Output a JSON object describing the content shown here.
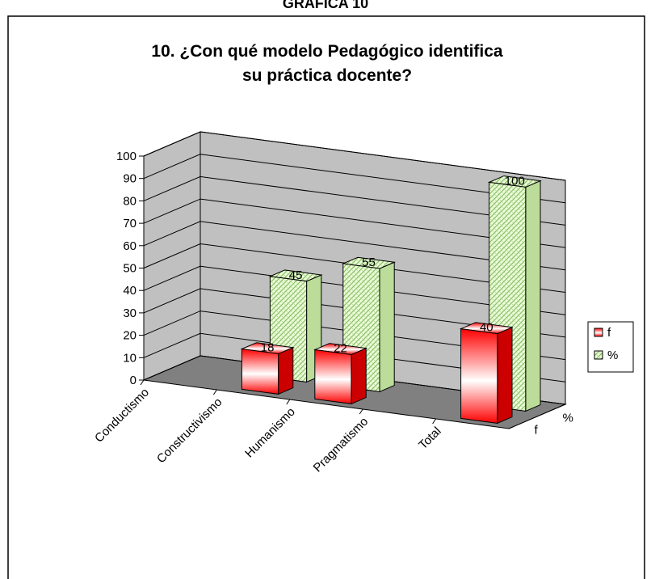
{
  "header": "GRAFICA 10",
  "chart_data": {
    "type": "bar3d",
    "title": "10. ¿Con qué modelo Pedagógico identifica\nsu práctica docente?",
    "categories": [
      "Conductismo",
      "Constructivismo",
      "Humanismo",
      "Pragmatismo",
      "Total"
    ],
    "series": [
      {
        "name": "f",
        "color": "#ff0000",
        "values": [
          null,
          18,
          22,
          null,
          40
        ]
      },
      {
        "name": "%",
        "color": "#ccffaa",
        "values": [
          null,
          45,
          55,
          null,
          100
        ]
      }
    ],
    "ylim": [
      0,
      100
    ],
    "yticks": [
      0,
      10,
      20,
      30,
      40,
      50,
      60,
      70,
      80,
      90,
      100
    ],
    "grid": true,
    "legend": "right"
  }
}
